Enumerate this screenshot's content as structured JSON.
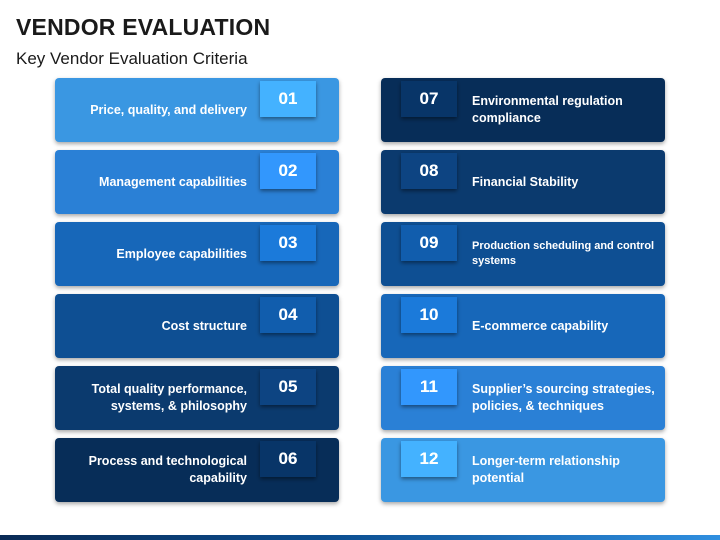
{
  "header": {
    "title": "VENDOR EVALUATION",
    "subtitle": "Key Vendor Evaluation Criteria"
  },
  "criteria": [
    {
      "number": "01",
      "label": "Price, quality, and delivery",
      "color": "#3a97e2"
    },
    {
      "number": "02",
      "label": "Management capabilities",
      "color": "#2a80d6"
    },
    {
      "number": "03",
      "label": "Employee capabilities",
      "color": "#1767b9"
    },
    {
      "number": "04",
      "label": "Cost structure",
      "color": "#0e4f93"
    },
    {
      "number": "05",
      "label": "Total quality performance, systems, & philosophy",
      "color": "#0b3a6e"
    },
    {
      "number": "06",
      "label": "Process and technological capability",
      "color": "#072d58"
    },
    {
      "number": "07",
      "label": "Environmental regulation compliance",
      "color": "#072d58"
    },
    {
      "number": "08",
      "label": "Financial Stability",
      "color": "#0b3a6e"
    },
    {
      "number": "09",
      "label": "Production scheduling and control systems",
      "color": "#0e4f93"
    },
    {
      "number": "10",
      "label": "E-commerce capability",
      "color": "#1767b9"
    },
    {
      "number": "11",
      "label": "Supplier’s sourcing strategies, policies, & techniques",
      "color": "#2a80d6"
    },
    {
      "number": "12",
      "label": "Longer-term relationship potential",
      "color": "#3a97e2"
    }
  ]
}
